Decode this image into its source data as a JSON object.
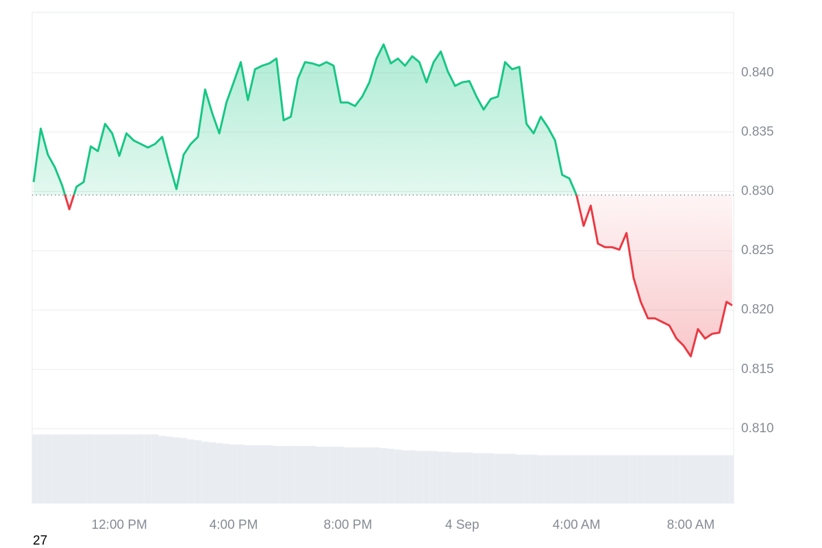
{
  "chart_data": {
    "type": "line",
    "x": [
      9.0,
      9.25,
      9.5,
      9.75,
      10.0,
      10.25,
      10.5,
      10.75,
      11.0,
      11.25,
      11.5,
      11.75,
      12.0,
      12.25,
      12.5,
      12.75,
      13.0,
      13.25,
      13.5,
      13.75,
      14.0,
      14.25,
      14.5,
      14.75,
      15.0,
      15.25,
      15.5,
      15.75,
      16.0,
      16.25,
      16.5,
      16.75,
      17.0,
      17.25,
      17.5,
      17.75,
      18.0,
      18.25,
      18.5,
      18.75,
      19.0,
      19.25,
      19.5,
      19.75,
      20.0,
      20.25,
      20.5,
      20.75,
      21.0,
      21.25,
      21.5,
      21.75,
      22.0,
      22.25,
      22.5,
      22.75,
      23.0,
      23.25,
      23.5,
      23.75,
      24.0,
      24.25,
      24.5,
      24.75,
      25.0,
      25.25,
      25.5,
      25.75,
      26.0,
      26.25,
      26.5,
      26.75,
      27.0,
      27.25,
      27.5,
      27.75,
      28.0,
      28.25,
      28.5,
      28.75,
      29.0,
      29.25,
      29.5,
      29.75,
      30.0,
      30.25,
      30.5,
      30.75,
      31.0,
      31.25,
      31.5,
      31.75,
      32.0,
      32.25,
      32.5,
      32.75,
      33.0,
      33.25,
      33.45
    ],
    "values": [
      0.8308,
      0.8353,
      0.8331,
      0.832,
      0.8305,
      0.8285,
      0.8304,
      0.8308,
      0.8338,
      0.8334,
      0.8357,
      0.8349,
      0.833,
      0.8349,
      0.8343,
      0.834,
      0.8337,
      0.834,
      0.8346,
      0.8323,
      0.8302,
      0.8331,
      0.834,
      0.8346,
      0.8386,
      0.8366,
      0.8349,
      0.8375,
      0.8392,
      0.8409,
      0.8377,
      0.8403,
      0.8406,
      0.8408,
      0.8412,
      0.836,
      0.8363,
      0.8395,
      0.8409,
      0.8408,
      0.8406,
      0.8409,
      0.8406,
      0.8375,
      0.8375,
      0.8372,
      0.838,
      0.8392,
      0.8412,
      0.8424,
      0.8408,
      0.8412,
      0.8406,
      0.8414,
      0.8409,
      0.8392,
      0.8409,
      0.8418,
      0.8401,
      0.8389,
      0.8392,
      0.8393,
      0.838,
      0.8369,
      0.8378,
      0.838,
      0.8409,
      0.8403,
      0.8405,
      0.8357,
      0.8349,
      0.8363,
      0.8354,
      0.8343,
      0.8314,
      0.8311,
      0.8297,
      0.8271,
      0.8288,
      0.8256,
      0.8253,
      0.8253,
      0.8251,
      0.8265,
      0.8227,
      0.8207,
      0.8193,
      0.8193,
      0.819,
      0.8187,
      0.8176,
      0.817,
      0.8161,
      0.8184,
      0.8176,
      0.818,
      0.8181,
      0.8207,
      0.8204
    ],
    "baseline": 0.8297,
    "up_color": "#16c784",
    "down_color": "#ea3943",
    "volume": {
      "color": "#e9edf2",
      "ylim": [
        0,
        100
      ],
      "values": [
        96,
        96,
        96,
        96,
        96,
        96,
        96,
        96,
        96,
        96,
        96,
        96,
        96,
        96,
        96,
        96,
        96,
        96,
        94,
        93,
        92,
        91,
        89,
        88,
        86,
        85,
        84,
        83,
        82,
        82,
        81,
        81,
        81,
        81,
        80,
        80,
        80,
        80,
        80,
        80,
        79,
        79,
        79,
        79,
        78,
        78,
        78,
        78,
        78,
        77,
        76,
        75,
        74,
        74,
        73,
        73,
        73,
        72,
        72,
        71,
        71,
        71,
        70,
        70,
        70,
        69,
        69,
        69,
        68,
        68,
        68,
        67,
        67,
        67,
        67,
        67,
        67,
        67,
        67,
        67,
        67,
        67,
        67,
        67,
        67,
        67,
        67,
        67,
        67,
        67,
        67,
        67,
        67,
        67,
        67,
        67,
        67,
        67,
        67
      ]
    },
    "xlim": [
      8.95,
      33.5
    ],
    "xticks": [
      {
        "value": 12,
        "label": "12:00 PM"
      },
      {
        "value": 16,
        "label": "4:00 PM"
      },
      {
        "value": 20,
        "label": "8:00 PM"
      },
      {
        "value": 24,
        "label": "4 Sep"
      },
      {
        "value": 28,
        "label": "4:00 AM"
      },
      {
        "value": 32,
        "label": "8:00 AM"
      }
    ],
    "ylim": [
      0.8037,
      0.8451
    ],
    "yticks": [
      {
        "value": 0.81,
        "label": "0.810"
      },
      0.815,
      {
        "value": 0.82,
        "label": "0.820"
      },
      0.825,
      {
        "value": 0.83,
        "label": "0.830"
      },
      0.835,
      {
        "value": 0.84,
        "label": "0.840"
      }
    ],
    "grid": true,
    "footer_text": "27"
  }
}
